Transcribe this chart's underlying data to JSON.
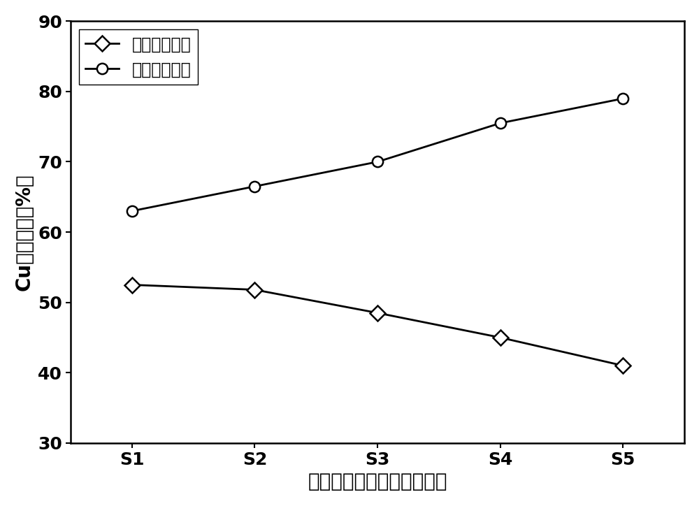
{
  "x_labels": [
    "S1",
    "S2",
    "S3",
    "S4",
    "S5"
  ],
  "series1_label": "传统电动修复",
  "series1_values": [
    52.5,
    51.8,
    48.5,
    45.0,
    41.0
  ],
  "series1_marker": "D",
  "series2_label": "强化电动修复",
  "series2_values": [
    63.0,
    66.5,
    70.0,
    75.5,
    79.0
  ],
  "series2_marker": "o",
  "line_color": "#000000",
  "ylabel": "Cu去除效率（%）",
  "xlabel": "土壤位置（从阳极到阴极）",
  "ylim": [
    30,
    90
  ],
  "yticks": [
    30,
    40,
    50,
    60,
    70,
    80,
    90
  ],
  "label_fontsize": 20,
  "tick_fontsize": 18,
  "legend_fontsize": 17,
  "marker_size": 11,
  "line_width": 2.0,
  "background_color": "#ffffff"
}
